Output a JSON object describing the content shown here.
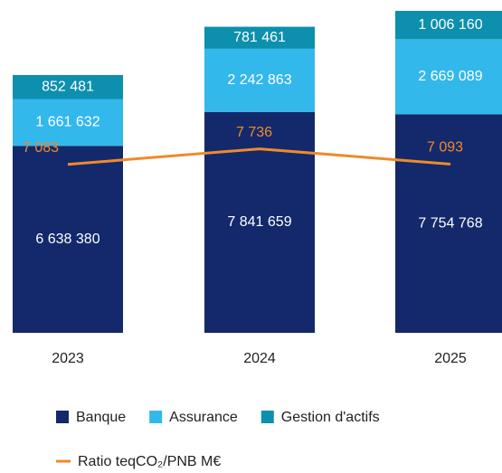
{
  "chart_data": {
    "type": "bar",
    "stacked": true,
    "categories": [
      "2023",
      "2024",
      "2025"
    ],
    "series": [
      {
        "name": "Banque",
        "color": "#13296b",
        "values": [
          6638380,
          7841659,
          7754768
        ],
        "value_labels": [
          "6 638 380",
          "7 841 659",
          "7 754 768"
        ]
      },
      {
        "name": "Assurance",
        "color": "#33b8ec",
        "values": [
          1661632,
          2242863,
          2669089
        ],
        "value_labels": [
          "1 661 632",
          "2 242 863",
          "2 669 089"
        ]
      },
      {
        "name": "Gestion d'actifs",
        "color": "#0d8fae",
        "values": [
          852481,
          781461,
          1006160
        ],
        "value_labels": [
          "852 481",
          "781 461",
          "1 006 160"
        ]
      },
      {
        "name": "Ratio teqCO₂/PNB M€",
        "type": "line",
        "axis": "y2",
        "color": "#f08a2c",
        "values": [
          7083,
          7736,
          7093
        ],
        "value_labels": [
          "7 083",
          "7 736",
          "7 093"
        ]
      }
    ]
  }
}
